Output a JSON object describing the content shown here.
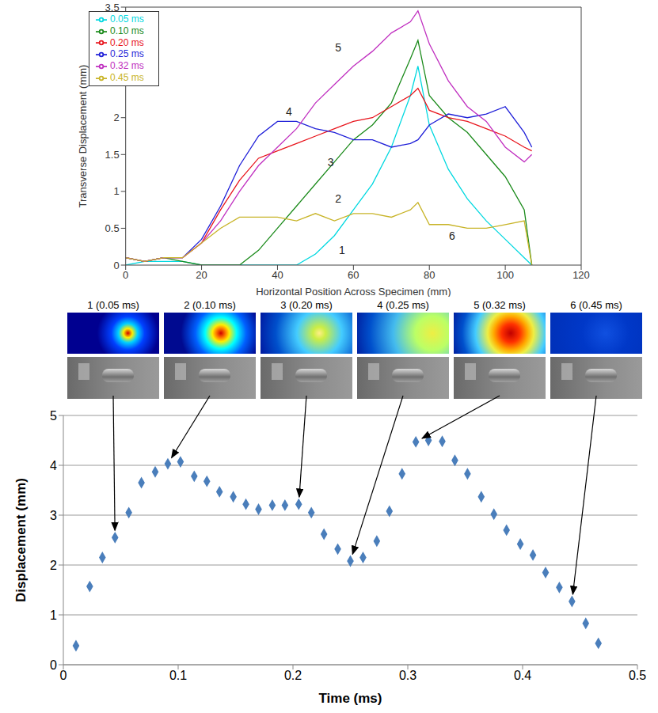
{
  "chart_data": [
    {
      "type": "line",
      "x_label": "Horizontal Position Across Specimen (mm)",
      "y_label": "Transverse Displacement (mm)",
      "xlim": [
        0,
        120
      ],
      "xticks": [
        0,
        20,
        40,
        60,
        80,
        100,
        120
      ],
      "ylim": [
        0,
        3.5
      ],
      "yticks": [
        0,
        0.5,
        1,
        1.5,
        2,
        2.5,
        3,
        3.5
      ],
      "legend": "upper left",
      "x": [
        0,
        5,
        10,
        15,
        20,
        25,
        30,
        35,
        40,
        45,
        50,
        55,
        60,
        65,
        70,
        75,
        77,
        80,
        85,
        90,
        95,
        100,
        105,
        107
      ],
      "series": [
        {
          "name": "0.05 ms",
          "color": "#00d8e0",
          "values": [
            0,
            0.05,
            0.05,
            0.05,
            0,
            0,
            0,
            0,
            0,
            0,
            0.15,
            0.4,
            0.75,
            1.1,
            1.6,
            2.3,
            2.7,
            1.9,
            1.3,
            0.9,
            0.6,
            0.35,
            0.1,
            0
          ]
        },
        {
          "name": "0.10 ms",
          "color": "#1a8a1a",
          "values": [
            0.1,
            0.05,
            0.1,
            0.05,
            0,
            0,
            0,
            0.2,
            0.5,
            0.8,
            1.1,
            1.4,
            1.7,
            1.9,
            2.2,
            2.8,
            3.05,
            2.3,
            2.0,
            1.8,
            1.5,
            1.2,
            0.75,
            0
          ]
        },
        {
          "name": "0.20 ms",
          "color": "#e8141c",
          "values": [
            0.1,
            0.05,
            0.1,
            0.1,
            0.3,
            0.75,
            1.15,
            1.45,
            1.55,
            1.65,
            1.75,
            1.85,
            1.95,
            2.0,
            2.15,
            2.3,
            2.4,
            2.1,
            2.0,
            1.95,
            1.85,
            1.75,
            1.6,
            1.55
          ]
        },
        {
          "name": "0.25 ms",
          "color": "#1f1fd8",
          "values": [
            0.1,
            0.05,
            0.1,
            0.1,
            0.35,
            0.8,
            1.35,
            1.75,
            1.95,
            1.95,
            1.85,
            1.8,
            1.7,
            1.7,
            1.6,
            1.65,
            1.7,
            1.9,
            2.05,
            2.0,
            2.05,
            2.15,
            1.8,
            1.6
          ]
        },
        {
          "name": "0.32 ms",
          "color": "#c030c0",
          "values": [
            0.1,
            0.05,
            0.1,
            0.1,
            0.3,
            0.6,
            1.0,
            1.35,
            1.6,
            1.85,
            2.2,
            2.45,
            2.7,
            2.9,
            3.15,
            3.3,
            3.45,
            3.0,
            2.5,
            2.15,
            1.95,
            1.6,
            1.4,
            1.5
          ]
        },
        {
          "name": "0.45 ms",
          "color": "#c8b428",
          "values": [
            0.1,
            0.05,
            0.1,
            0.1,
            0.3,
            0.5,
            0.65,
            0.65,
            0.65,
            0.6,
            0.7,
            0.6,
            0.7,
            0.7,
            0.65,
            0.75,
            0.85,
            0.55,
            0.55,
            0.5,
            0.5,
            0.55,
            0.6,
            0
          ]
        }
      ],
      "annotations": [
        {
          "text": "1",
          "x": 57,
          "y": 0.2
        },
        {
          "text": "2",
          "x": 56,
          "y": 0.9
        },
        {
          "text": "3",
          "x": 54,
          "y": 1.4
        },
        {
          "text": "4",
          "x": 43,
          "y": 2.08
        },
        {
          "text": "5",
          "x": 56,
          "y": 2.95
        },
        {
          "text": "6",
          "x": 86,
          "y": 0.4
        }
      ]
    },
    {
      "type": "scatter",
      "x_label": "Time (ms)",
      "y_label": "Displacement (mm)",
      "xlim": [
        0,
        0.5
      ],
      "xticks": [
        0,
        0.1,
        0.2,
        0.3,
        0.4,
        0.5
      ],
      "ylim": [
        0,
        5
      ],
      "yticks": [
        0,
        1,
        2,
        3,
        4,
        5
      ],
      "grid": true,
      "marker": "diamond",
      "color": "#4a7ebb",
      "x": [
        0.011,
        0.023,
        0.034,
        0.045,
        0.057,
        0.068,
        0.08,
        0.091,
        0.102,
        0.114,
        0.125,
        0.136,
        0.148,
        0.159,
        0.17,
        0.182,
        0.193,
        0.205,
        0.216,
        0.227,
        0.239,
        0.25,
        0.261,
        0.273,
        0.284,
        0.295,
        0.307,
        0.318,
        0.33,
        0.341,
        0.352,
        0.364,
        0.375,
        0.386,
        0.398,
        0.409,
        0.42,
        0.432,
        0.443,
        0.455,
        0.466
      ],
      "values": [
        0.38,
        1.57,
        2.15,
        2.55,
        3.05,
        3.65,
        3.87,
        4.03,
        4.07,
        3.78,
        3.68,
        3.47,
        3.37,
        3.22,
        3.12,
        3.2,
        3.2,
        3.22,
        3.05,
        2.62,
        2.32,
        2.08,
        2.15,
        2.48,
        3.08,
        3.83,
        4.47,
        4.5,
        4.48,
        4.1,
        3.83,
        3.37,
        3.02,
        2.7,
        2.42,
        2.2,
        1.85,
        1.55,
        1.27,
        0.83,
        0.43
      ]
    }
  ],
  "frames": [
    {
      "label": "1 (0.05 ms)",
      "arrow_to": {
        "x": 0.045,
        "y": 2.55
      }
    },
    {
      "label": "2 (0.10 ms)",
      "arrow_to": {
        "x": 0.091,
        "y": 4.03
      }
    },
    {
      "label": "3 (0.20 ms)",
      "arrow_to": {
        "x": 0.205,
        "y": 3.22
      }
    },
    {
      "label": "4 (0.25 ms)",
      "arrow_to": {
        "x": 0.25,
        "y": 2.08
      }
    },
    {
      "label": "5 (0.32 ms)",
      "arrow_to": {
        "x": 0.307,
        "y": 4.47
      }
    },
    {
      "label": "6 (0.45 ms)",
      "arrow_to": {
        "x": 0.443,
        "y": 1.27
      }
    }
  ]
}
